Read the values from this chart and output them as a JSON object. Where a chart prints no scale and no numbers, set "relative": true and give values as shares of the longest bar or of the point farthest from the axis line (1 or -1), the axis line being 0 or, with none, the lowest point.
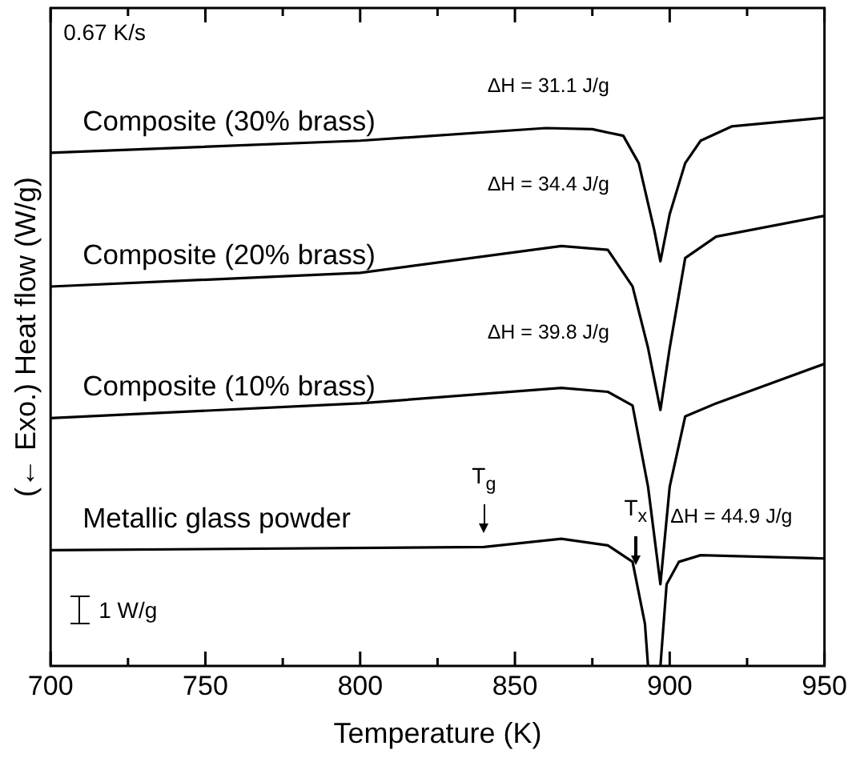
{
  "chart_data": {
    "type": "line",
    "relative": true,
    "xlabel": "Temperature (K)",
    "ylabel": "(← Exo.) Heat flow (W/g)",
    "xlim": [
      700,
      950
    ],
    "xticks": [
      700,
      {
        "value": 725,
        "label": null
      },
      750,
      {
        "value": 775,
        "label": null
      },
      800,
      {
        "value": 825,
        "label": null
      },
      850,
      {
        "value": 875,
        "label": null
      },
      900,
      {
        "value": 925,
        "label": null
      },
      950
    ],
    "legend": false,
    "grid": false,
    "marker": "none",
    "line_style": "solid",
    "series": [
      {
        "name": "Composite (30% brass)",
        "color": "#000000",
        "x": [
          700,
          800,
          860,
          875,
          885,
          890,
          895,
          897,
          900,
          905,
          910,
          920,
          950
        ],
        "values": [
          0.936,
          0.958,
          0.981,
          0.979,
          0.967,
          0.917,
          0.795,
          0.738,
          0.824,
          0.917,
          0.958,
          0.984,
          1
        ]
      },
      {
        "name": "Composite (20% brass)",
        "color": "#000000",
        "x": [
          700,
          800,
          865,
          880,
          888,
          893,
          897,
          900,
          905,
          915,
          950
        ],
        "values": [
          0.692,
          0.717,
          0.766,
          0.759,
          0.692,
          0.58,
          0.467,
          0.58,
          0.744,
          0.783,
          0.821
        ]
      },
      {
        "name": "Composite (10% brass)",
        "color": "#000000",
        "x": [
          700,
          800,
          865,
          880,
          888,
          893,
          897,
          900,
          905,
          915,
          950
        ],
        "values": [
          0.452,
          0.479,
          0.507,
          0.5,
          0.475,
          0.327,
          0.149,
          0.327,
          0.455,
          0.479,
          0.551
        ]
      },
      {
        "name": "Metallic glass powder",
        "color": "#000000",
        "x": [
          700,
          840,
          865,
          880,
          888,
          892,
          893,
          895,
          897,
          899,
          903,
          910,
          950
        ],
        "values": [
          0.211,
          0.217,
          0.232,
          0.22,
          0.19,
          0.077,
          0,
          null,
          0,
          0.149,
          0.19,
          0.202,
          0.196
        ]
      }
    ],
    "annotations": [
      "0.67 K/s",
      "ΔH = 31.1 J/g",
      "ΔH = 34.4 J/g",
      "ΔH = 39.8 J/g",
      "ΔH = 44.9 J/g",
      "1 W/g",
      {
        "text": "T$_{g}$",
        "x": 840,
        "y": 0.22
      },
      {
        "text": "T$_{x}$",
        "x": 889,
        "y": 0.16
      }
    ]
  }
}
